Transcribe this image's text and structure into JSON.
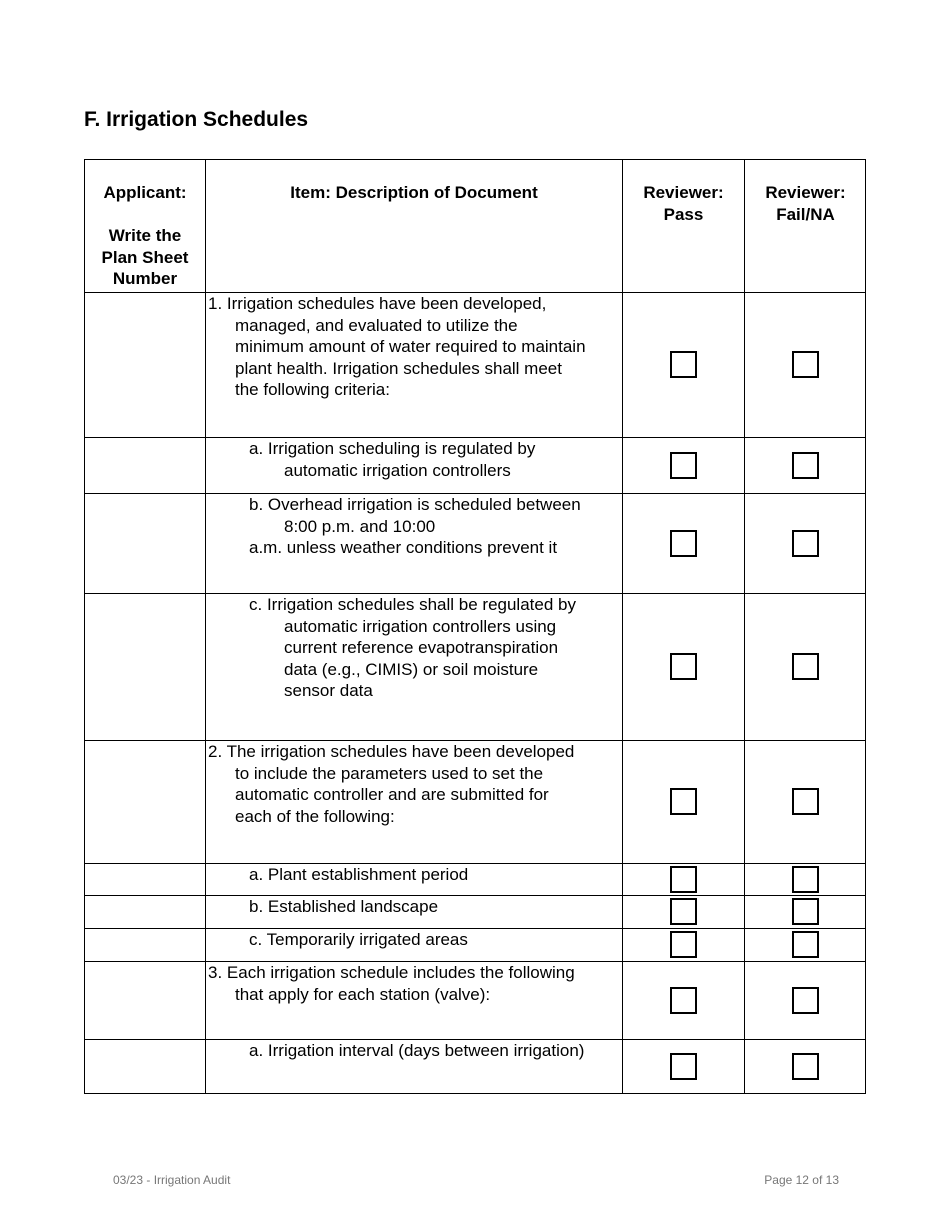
{
  "section_title": "F. Irrigation Schedules",
  "headers": {
    "applicant": [
      "Applicant:",
      "",
      "Write the",
      "Plan Sheet",
      "Number"
    ],
    "item": [
      "Item: Description of Document"
    ],
    "pass": [
      "Reviewer:",
      "Pass"
    ],
    "fail": [
      "Reviewer:",
      "Fail/NA"
    ]
  },
  "rows": [
    {
      "level": 1,
      "lines": [
        "1. Irrigation schedules have been developed,",
        "managed, and evaluated to utilize the",
        "minimum amount of water required to maintain",
        "plant health. Irrigation schedules shall meet",
        "the following criteria:"
      ],
      "pass_checked": false,
      "fail_checked": false
    },
    {
      "level": 2,
      "lines": [
        "a. Irrigation scheduling is regulated by",
        "automatic irrigation controllers"
      ],
      "pass_checked": false,
      "fail_checked": false
    },
    {
      "level": 2,
      "lines": [
        "b. Overhead irrigation is scheduled between",
        "8:00 p.m. and 10:00",
        "a.m. unless weather conditions prevent it"
      ],
      "pass_checked": false,
      "fail_checked": false
    },
    {
      "level": 2,
      "lines": [
        "c. Irrigation schedules shall be regulated by",
        "automatic irrigation controllers using",
        "current reference evapotranspiration",
        "data (e.g., CIMIS) or soil moisture",
        "sensor data"
      ],
      "pass_checked": false,
      "fail_checked": false
    },
    {
      "level": 1,
      "lines": [
        "2. The irrigation schedules have been developed",
        "to include the parameters used to set the",
        "automatic controller and are submitted for",
        "each of the following:"
      ],
      "pass_checked": false,
      "fail_checked": false
    },
    {
      "level": 2,
      "lines": [
        "a. Plant establishment period"
      ],
      "pass_checked": false,
      "fail_checked": false
    },
    {
      "level": 2,
      "lines": [
        "b. Established landscape"
      ],
      "pass_checked": false,
      "fail_checked": false
    },
    {
      "level": 2,
      "lines": [
        "c. Temporarily irrigated areas"
      ],
      "pass_checked": false,
      "fail_checked": false
    },
    {
      "level": 1,
      "lines": [
        "3. Each irrigation schedule includes the following",
        "that apply for each station (valve):"
      ],
      "pass_checked": false,
      "fail_checked": false
    },
    {
      "level": 2,
      "lines": [
        "a. Irrigation interval (days between irrigation)"
      ],
      "pass_checked": false,
      "fail_checked": false
    }
  ],
  "footer": {
    "left": "03/23 - Irrigation Audit",
    "right": "Page 12 of 13"
  }
}
